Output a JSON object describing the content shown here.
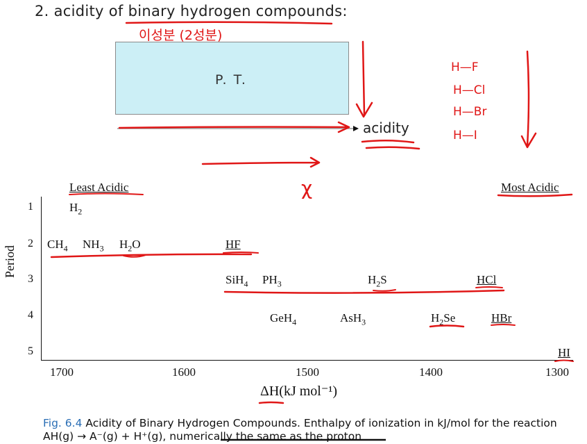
{
  "slide": {
    "title": "2. acidity of binary hydrogen compounds:",
    "pt_label": "P. T.",
    "acidity_label": "acidity"
  },
  "figure": {
    "least_acidic": "Least Acidic",
    "most_acidic": "Most Acidic",
    "period_axis_title": "Period",
    "periods": [
      "1",
      "2",
      "3",
      "4",
      "5"
    ],
    "x_ticks": [
      "1700",
      "1600",
      "1500",
      "1400",
      "1300"
    ],
    "x_axis_label": "ΔH(kJ mol⁻¹)",
    "compounds": [
      {
        "formula": "H",
        "sub": "2",
        "tail": "",
        "period": 1
      },
      {
        "formula": "CH",
        "sub": "4",
        "tail": "",
        "period": 2
      },
      {
        "formula": "NH",
        "sub": "3",
        "tail": "",
        "period": 2
      },
      {
        "formula": "H",
        "sub": "2",
        "tail": "O",
        "period": 2
      },
      {
        "formula": "HF",
        "sub": "",
        "tail": "",
        "period": 2
      },
      {
        "formula": "SiH",
        "sub": "4",
        "tail": "",
        "period": 3
      },
      {
        "formula": "PH",
        "sub": "3",
        "tail": "",
        "period": 3
      },
      {
        "formula": "H",
        "sub": "2",
        "tail": "S",
        "period": 3
      },
      {
        "formula": "HCl",
        "sub": "",
        "tail": "",
        "period": 3
      },
      {
        "formula": "GeH",
        "sub": "4",
        "tail": "",
        "period": 4
      },
      {
        "formula": "AsH",
        "sub": "3",
        "tail": "",
        "period": 4
      },
      {
        "formula": "H",
        "sub": "2",
        "tail": "Se",
        "period": 4
      },
      {
        "formula": "HBr",
        "sub": "",
        "tail": "",
        "period": 4
      },
      {
        "formula": "HI",
        "sub": "",
        "tail": "",
        "period": 5
      }
    ],
    "caption_label": "Fig. 6.4",
    "caption_text": "Acidity of Binary Hydrogen Compounds. Enthalpy of ionization in kJ/mol for the reaction AH(g) → A⁻(g) + H⁺(g), numerically the same as the proton"
  },
  "annotations": {
    "korean_note": "이성분 (2성분)",
    "x_symbol": "χ",
    "halides": [
      "H—F",
      "H—Cl",
      "H—Br",
      "H—I"
    ]
  },
  "colors": {
    "ink": "#e01616",
    "box_fill": "#cceff6",
    "caption_label": "#2a6eb5"
  }
}
